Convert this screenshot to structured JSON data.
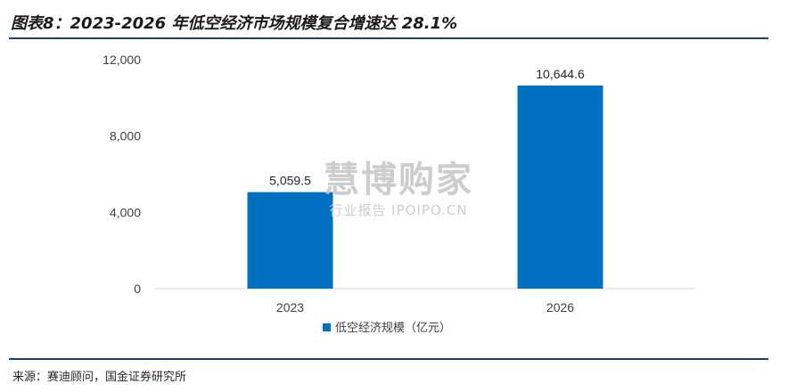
{
  "header": {
    "title": "图表8：2023-2026 年低空经济市场规模复合增速达 28.1%"
  },
  "footer": {
    "source": "来源：赛迪顾问，国金证券研究所"
  },
  "watermark": {
    "main": "慧博购家",
    "sub": "行业报告 IPOIPO.CN"
  },
  "colors": {
    "bar": "#0070c0",
    "rule": "#1f3e6e",
    "axis": "#d9d9d9"
  },
  "chart_data": {
    "type": "bar",
    "categories": [
      "2023",
      "2026"
    ],
    "series": [
      {
        "name": "低空经济规模（亿元）",
        "values": [
          5059.5,
          10644.6
        ]
      }
    ],
    "data_labels": [
      "5,059.5",
      "10,644.6"
    ],
    "yticks": [
      "0",
      "4,000",
      "8,000",
      "12,000"
    ],
    "ylim": [
      0,
      12000
    ],
    "grid": false,
    "legend_position": "bottom"
  }
}
